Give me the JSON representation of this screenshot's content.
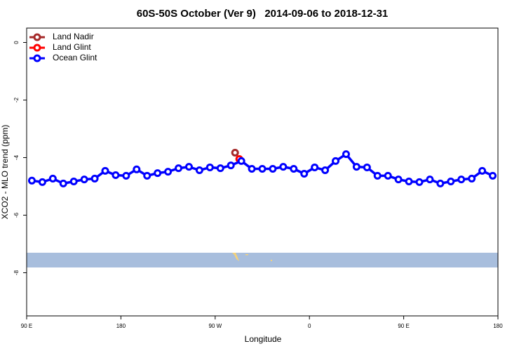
{
  "chart_data": {
    "type": "line",
    "title": "60S-50S October (Ver 9)   2014-09-06 to 2018-12-31",
    "x_label": "Longitude",
    "y_label": "XCO2 - MLO trend (ppm)",
    "xlim": [
      90,
      540
    ],
    "ylim": [
      -9.5,
      0.5
    ],
    "xticks": [
      {
        "value": 90,
        "label": "90 E"
      },
      180,
      {
        "value": 270,
        "label": "90 W"
      },
      {
        "value": 360,
        "label": "0"
      },
      {
        "value": 450,
        "label": "90 E"
      },
      {
        "value": 540,
        "label": "180"
      }
    ],
    "yticks": [
      0,
      -2,
      -4,
      -6,
      -8
    ],
    "legend": "top-left",
    "series": [
      {
        "name": "Land Nadir",
        "color": "#a52a2a",
        "x": [
          289
        ],
        "values": [
          -3.83
        ]
      },
      {
        "name": "Land Glint",
        "color": "#ff0000",
        "x": [
          293
        ],
        "values": [
          -4.05
        ]
      },
      {
        "name": "Ocean Glint",
        "color": "#0000ff",
        "x": [
          95,
          105,
          115,
          125,
          135,
          145,
          155,
          165,
          175,
          185,
          195,
          205,
          215,
          225,
          235,
          245,
          255,
          265,
          275,
          285,
          295,
          305,
          315,
          325,
          335,
          345,
          355,
          365,
          375,
          385,
          395,
          405,
          415,
          425,
          435,
          445,
          455,
          465,
          475,
          485,
          495,
          505,
          515,
          525,
          535
        ],
        "values": [
          -4.8,
          -4.85,
          -4.73,
          -4.9,
          -4.83,
          -4.76,
          -4.73,
          -4.46,
          -4.61,
          -4.63,
          -4.41,
          -4.63,
          -4.54,
          -4.49,
          -4.37,
          -4.32,
          -4.44,
          -4.34,
          -4.37,
          -4.27,
          -4.12,
          -4.39,
          -4.39,
          -4.39,
          -4.32,
          -4.39,
          -4.56,
          -4.34,
          -4.44,
          -4.12,
          -3.88,
          -4.32,
          -4.34,
          -4.63,
          -4.63,
          -4.76,
          -4.83,
          -4.85,
          -4.76,
          -4.9,
          -4.83,
          -4.76,
          -4.73,
          -4.46,
          -4.63
        ]
      }
    ]
  }
}
